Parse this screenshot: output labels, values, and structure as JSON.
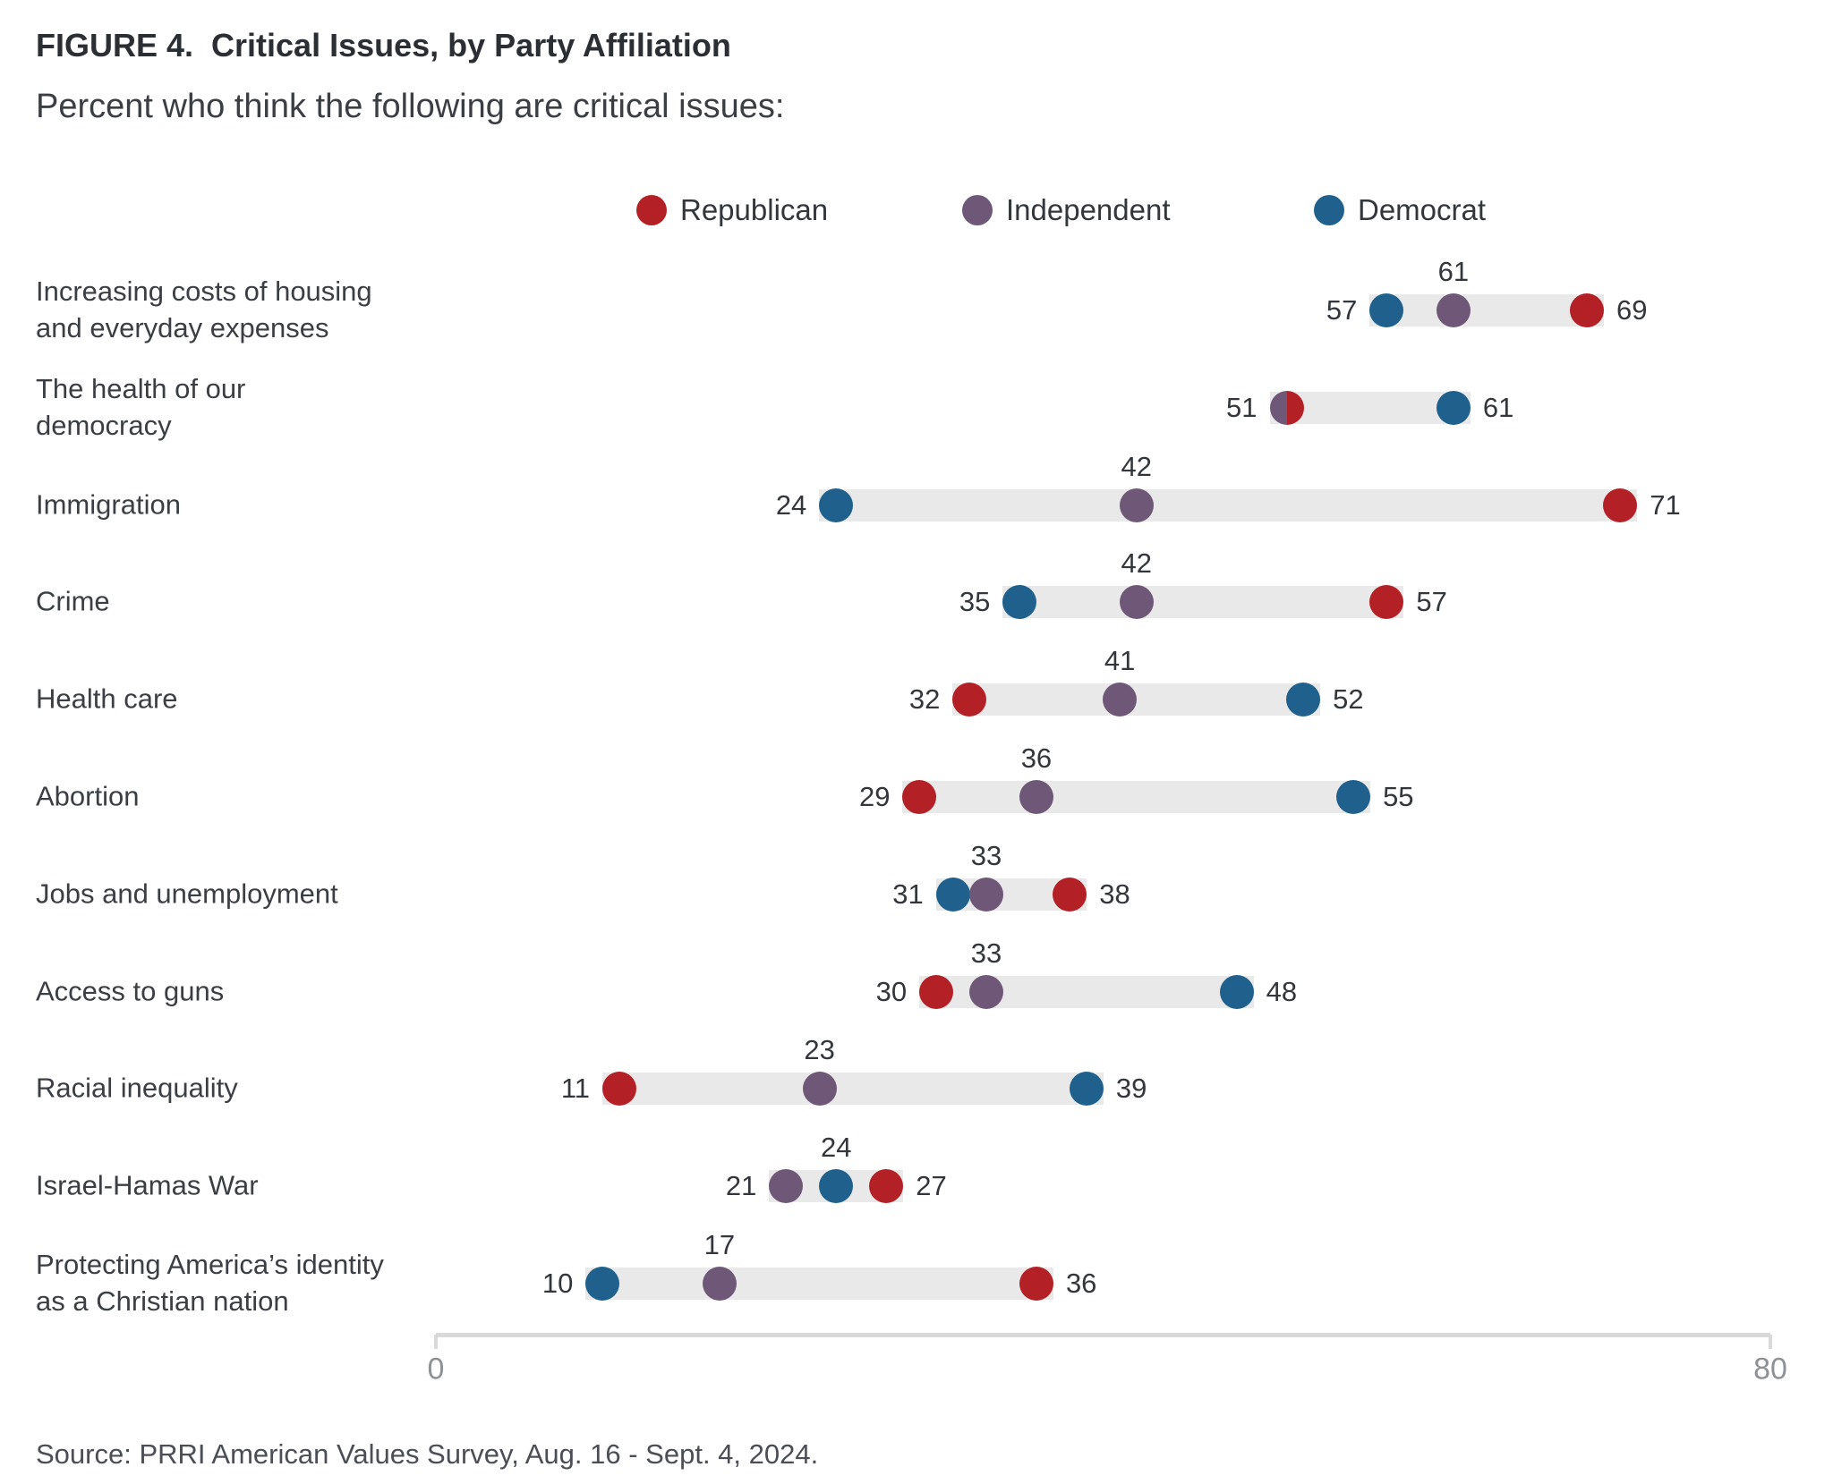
{
  "figure": {
    "title": "FIGURE 4.  Critical Issues, by Party Affiliation",
    "subtitle": "Percent who think the following are critical issues:",
    "source": "Source: PRRI American Values Survey, Aug. 16 - Sept. 4, 2024."
  },
  "legend": {
    "items": [
      {
        "label": "Republican",
        "color": "#b32025"
      },
      {
        "label": "Independent",
        "color": "#6f5877"
      },
      {
        "label": "Democrat",
        "color": "#1f618c"
      }
    ]
  },
  "chart_data": {
    "type": "dumbbell-dot-plot",
    "title": "FIGURE 4.  Critical Issues, by Party Affiliation",
    "subtitle": "Percent who think the following are critical issues:",
    "xlabel": "",
    "ylabel": "",
    "xlim": [
      0,
      80
    ],
    "x_tick_values": [
      0,
      80
    ],
    "grid": false,
    "legend_position": "top",
    "series_names": [
      "Republican",
      "Independent",
      "Democrat"
    ],
    "series_colors": {
      "Republican": "#b32025",
      "Independent": "#6f5877",
      "Democrat": "#1f618c"
    },
    "bar_color": "#e9e9e9",
    "rows": [
      {
        "category": "Increasing costs of housing\nand everyday expenses",
        "values": {
          "Republican": 69,
          "Independent": 61,
          "Democrat": 57
        }
      },
      {
        "category": "The health of our\ndemocracy",
        "values": {
          "Republican": 51,
          "Independent": 51,
          "Democrat": 61
        }
      },
      {
        "category": "Immigration",
        "values": {
          "Republican": 71,
          "Independent": 42,
          "Democrat": 24
        }
      },
      {
        "category": "Crime",
        "values": {
          "Republican": 57,
          "Independent": 42,
          "Democrat": 35
        }
      },
      {
        "category": "Health care",
        "values": {
          "Republican": 32,
          "Independent": 41,
          "Democrat": 52
        }
      },
      {
        "category": "Abortion",
        "values": {
          "Republican": 29,
          "Independent": 36,
          "Democrat": 55
        }
      },
      {
        "category": "Jobs and unemployment",
        "values": {
          "Republican": 38,
          "Independent": 33,
          "Democrat": 31
        }
      },
      {
        "category": "Access to guns",
        "values": {
          "Republican": 30,
          "Independent": 33,
          "Democrat": 48
        }
      },
      {
        "category": "Racial inequality",
        "values": {
          "Republican": 11,
          "Independent": 23,
          "Democrat": 39
        }
      },
      {
        "category": "Israel-Hamas War",
        "values": {
          "Republican": 27,
          "Independent": 21,
          "Democrat": 24
        }
      },
      {
        "category": "Protecting America’s identity\nas a Christian nation",
        "values": {
          "Republican": 36,
          "Independent": 17,
          "Democrat": 10
        }
      }
    ]
  }
}
